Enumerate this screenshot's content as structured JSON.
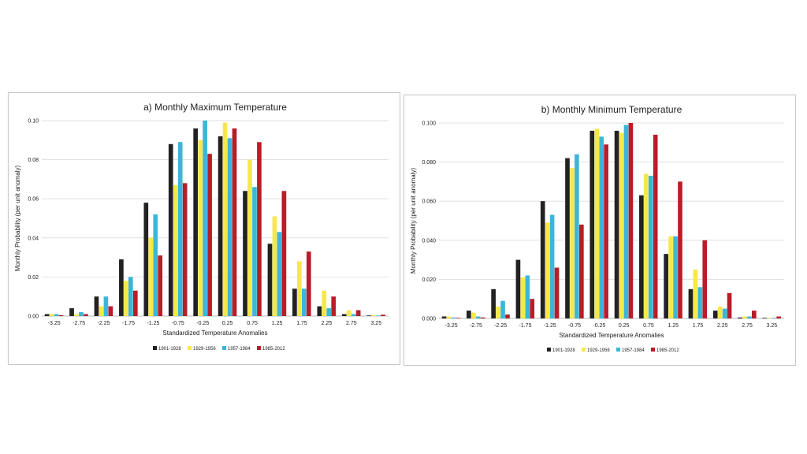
{
  "colors": {
    "1901-1928": "#222222",
    "1929-1956": "#f7e84a",
    "1957-1984": "#3cb6d8",
    "1985-2012": "#b81d28"
  },
  "chart_data": [
    {
      "type": "bar",
      "title": "a) Monthly Maximum Temperature",
      "xlabel": "Standardized Temperature Anomalies",
      "ylabel": "Monthly Probability (per unit anomaly)",
      "ylim": [
        0,
        0.1
      ],
      "yticks": [
        "0.00",
        "0.02",
        "0.04",
        "0.06",
        "0.08",
        "0.10"
      ],
      "categories": [
        "-3.25",
        "-2.75",
        "-2.25",
        "-1.75",
        "-1.25",
        "-0.75",
        "-0.25",
        "0.25",
        "0.75",
        "1.25",
        "1.75",
        "2.25",
        "2.75",
        "3.25"
      ],
      "legend_position": "bottom",
      "grid": true,
      "series": [
        {
          "name": "1901-1928",
          "values": [
            0.001,
            0.004,
            0.01,
            0.029,
            0.058,
            0.088,
            0.096,
            0.092,
            0.064,
            0.037,
            0.014,
            0.005,
            0.001,
            0.0003
          ]
        },
        {
          "name": "1929-1956",
          "values": [
            0.001,
            0.001,
            0.005,
            0.018,
            0.04,
            0.067,
            0.09,
            0.099,
            0.08,
            0.051,
            0.028,
            0.013,
            0.003,
            0.0005
          ]
        },
        {
          "name": "1957-1984",
          "values": [
            0.001,
            0.002,
            0.01,
            0.02,
            0.052,
            0.089,
            0.1,
            0.091,
            0.066,
            0.043,
            0.014,
            0.004,
            0.001,
            0.0003
          ]
        },
        {
          "name": "1985-2012",
          "values": [
            0.0005,
            0.001,
            0.005,
            0.013,
            0.031,
            0.068,
            0.083,
            0.096,
            0.089,
            0.064,
            0.033,
            0.01,
            0.003,
            0.0007
          ]
        }
      ]
    },
    {
      "type": "bar",
      "title": "b) Monthly Minimum Temperature",
      "xlabel": "Standardized Temperature Anomalies",
      "ylabel": "Monthly Probability (per unit anomaly)",
      "ylim": [
        0,
        0.1
      ],
      "yticks": [
        "0.000",
        "0.020",
        "0.040",
        "0.060",
        "0.080",
        "0.100"
      ],
      "categories": [
        "-3.25",
        "-2.75",
        "-2.25",
        "-1.75",
        "-1.25",
        "-0.75",
        "-0.25",
        "0.25",
        "0.75",
        "1.25",
        "1.75",
        "2.25",
        "2.75",
        "3.25"
      ],
      "legend_position": "bottom",
      "grid": true,
      "series": [
        {
          "name": "1901-1928",
          "values": [
            0.001,
            0.004,
            0.015,
            0.03,
            0.06,
            0.082,
            0.096,
            0.096,
            0.063,
            0.033,
            0.015,
            0.004,
            0.0005,
            0.0003
          ]
        },
        {
          "name": "1929-1956",
          "values": [
            0.001,
            0.003,
            0.006,
            0.021,
            0.049,
            0.077,
            0.097,
            0.095,
            0.074,
            0.042,
            0.025,
            0.006,
            0.001,
            0.0003
          ]
        },
        {
          "name": "1957-1984",
          "values": [
            0.0005,
            0.001,
            0.009,
            0.022,
            0.053,
            0.084,
            0.093,
            0.099,
            0.073,
            0.042,
            0.016,
            0.005,
            0.001,
            0.0003
          ]
        },
        {
          "name": "1985-2012",
          "values": [
            0.0003,
            0.0005,
            0.002,
            0.01,
            0.026,
            0.048,
            0.089,
            0.1,
            0.094,
            0.07,
            0.04,
            0.013,
            0.004,
            0.001
          ]
        }
      ]
    }
  ]
}
